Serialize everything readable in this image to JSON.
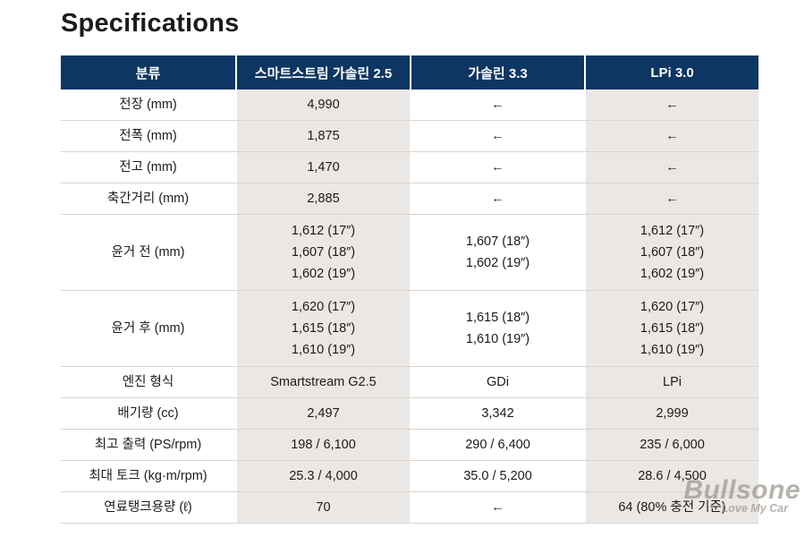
{
  "page": {
    "title": "Specifications"
  },
  "colors": {
    "header_bg": "#0e3662",
    "cell_alt": "#eae7e4",
    "divider": "#d8d4d0",
    "text": "#1c1b19"
  },
  "table": {
    "columns": [
      "분류",
      "스마트스트림 가솔린 2.5",
      "가솔린 3.3",
      "LPi 3.0"
    ],
    "rows": [
      {
        "label": "전장 (mm)",
        "values": [
          "4,990",
          "←",
          "←"
        ]
      },
      {
        "label": "전폭 (mm)",
        "values": [
          "1,875",
          "←",
          "←"
        ]
      },
      {
        "label": "전고 (mm)",
        "values": [
          "1,470",
          "←",
          "←"
        ]
      },
      {
        "label": "축간거리 (mm)",
        "values": [
          "2,885",
          "←",
          "←"
        ]
      },
      {
        "label": "윤거 전 (mm)",
        "values": [
          [
            "1,612 (17″)",
            "1,607 (18″)",
            "1,602 (19″)"
          ],
          [
            "1,607 (18″)",
            "1,602 (19″)"
          ],
          [
            "1,612 (17″)",
            "1,607 (18″)",
            "1,602 (19″)"
          ]
        ]
      },
      {
        "label": "윤거 후 (mm)",
        "values": [
          [
            "1,620 (17″)",
            "1,615 (18″)",
            "1,610 (19″)"
          ],
          [
            "1,615 (18″)",
            "1,610 (19″)"
          ],
          [
            "1,620 (17″)",
            "1,615 (18″)",
            "1,610 (19″)"
          ]
        ]
      },
      {
        "label": "엔진 형식",
        "values": [
          "Smartstream G2.5",
          "GDi",
          "LPi"
        ]
      },
      {
        "label": "배기량 (cc)",
        "values": [
          "2,497",
          "3,342",
          "2,999"
        ]
      },
      {
        "label": "최고 출력 (PS/rpm)",
        "values": [
          "198 / 6,100",
          "290 / 6,400",
          "235 / 6,000"
        ]
      },
      {
        "label": "최대 토크 (kg·m/rpm)",
        "values": [
          "25.3 / 4,000",
          "35.0 / 5,200",
          "28.6 / 4,500"
        ]
      },
      {
        "label": "연료탱크용량 (ℓ)",
        "values": [
          "70",
          "←",
          "64 (80% 충전 기준)"
        ]
      }
    ]
  },
  "watermark": {
    "brand": "Bullsone",
    "tagline": "Love My Car"
  }
}
